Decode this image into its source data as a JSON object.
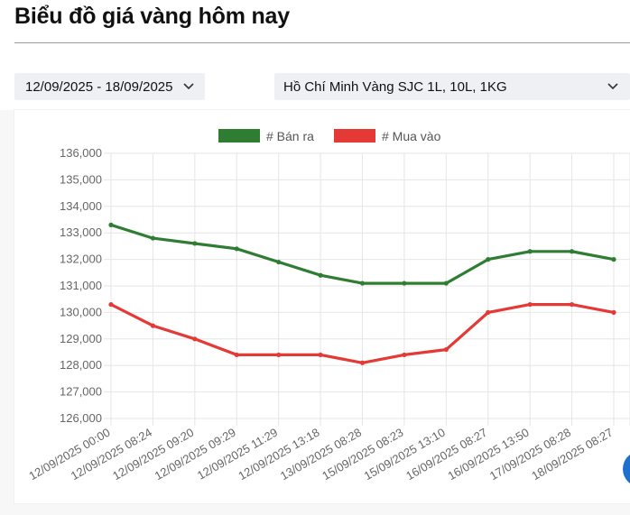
{
  "page": {
    "title": "Biểu đồ giá vàng hôm nay"
  },
  "filters": {
    "date_range": "12/09/2025 - 18/09/2025",
    "gold_type": "Hồ Chí Minh Vàng SJC 1L, 10L, 1KG"
  },
  "icons": {
    "dropdown": "chevron-down-icon"
  },
  "chart_data": {
    "type": "line",
    "x": [
      "12/09/2025 00:00",
      "12/09/2025 08:24",
      "12/09/2025 09:20",
      "12/09/2025 09:29",
      "12/09/2025 11:29",
      "12/09/2025 13:18",
      "13/09/2025 08:28",
      "15/09/2025 08:23",
      "15/09/2025 13:10",
      "16/09/2025 08:27",
      "16/09/2025 13:50",
      "17/09/2025 08:28",
      "18/09/2025 08:27"
    ],
    "series": [
      {
        "name": "# Bán ra",
        "color": "#2e7d32",
        "values": [
          133300,
          132800,
          132600,
          132400,
          131900,
          131400,
          131100,
          131100,
          131100,
          132000,
          132300,
          132300,
          132000
        ]
      },
      {
        "name": "# Mua vào",
        "color": "#e53935",
        "values": [
          130300,
          129500,
          129000,
          128400,
          128400,
          128400,
          128100,
          128400,
          128600,
          130000,
          130300,
          130300,
          130000
        ]
      }
    ],
    "ylim": [
      126000,
      136000
    ],
    "yticks": [
      "126,000",
      "127,000",
      "128,000",
      "129,000",
      "130,000",
      "131,000",
      "132,000",
      "133,000",
      "134,000",
      "135,000",
      "136,000"
    ],
    "grid": true,
    "legend_position": "top-center"
  }
}
